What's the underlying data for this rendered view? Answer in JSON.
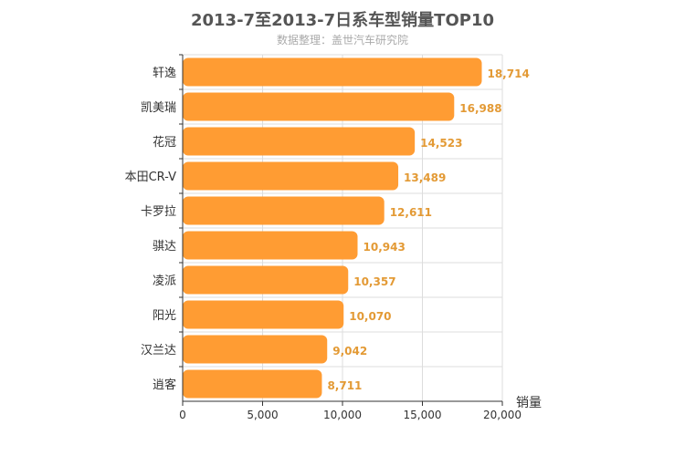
{
  "chart_data": {
    "type": "bar",
    "orientation": "horizontal",
    "title": "2013-7至2013-7日系车型销量TOP10",
    "subtitle": "数据整理：盖世汽车研究院",
    "categories": [
      "轩逸",
      "凯美瑞",
      "花冠",
      "本田CR-V",
      "卡罗拉",
      "骐达",
      "凌派",
      "阳光",
      "汉兰达",
      "逍客"
    ],
    "values": [
      18714,
      16988,
      14523,
      13489,
      12611,
      10943,
      10357,
      10070,
      9042,
      8711
    ],
    "value_labels": [
      "18,714",
      "16,988",
      "14,523",
      "13,489",
      "12,611",
      "10,943",
      "10,357",
      "10,070",
      "9,042",
      "8,711"
    ],
    "xlabel": "销量",
    "ylabel": "",
    "xlim": [
      0,
      20000
    ],
    "x_ticks": [
      0,
      5000,
      10000,
      15000,
      20000
    ],
    "x_tick_labels": [
      "0",
      "5,000",
      "10,000",
      "15,000",
      "20,000"
    ],
    "grid": true,
    "colors": {
      "bar": "#ff9c33",
      "value_label": "#e39a35",
      "grid": "#dddddd",
      "axis": "#333333"
    }
  }
}
